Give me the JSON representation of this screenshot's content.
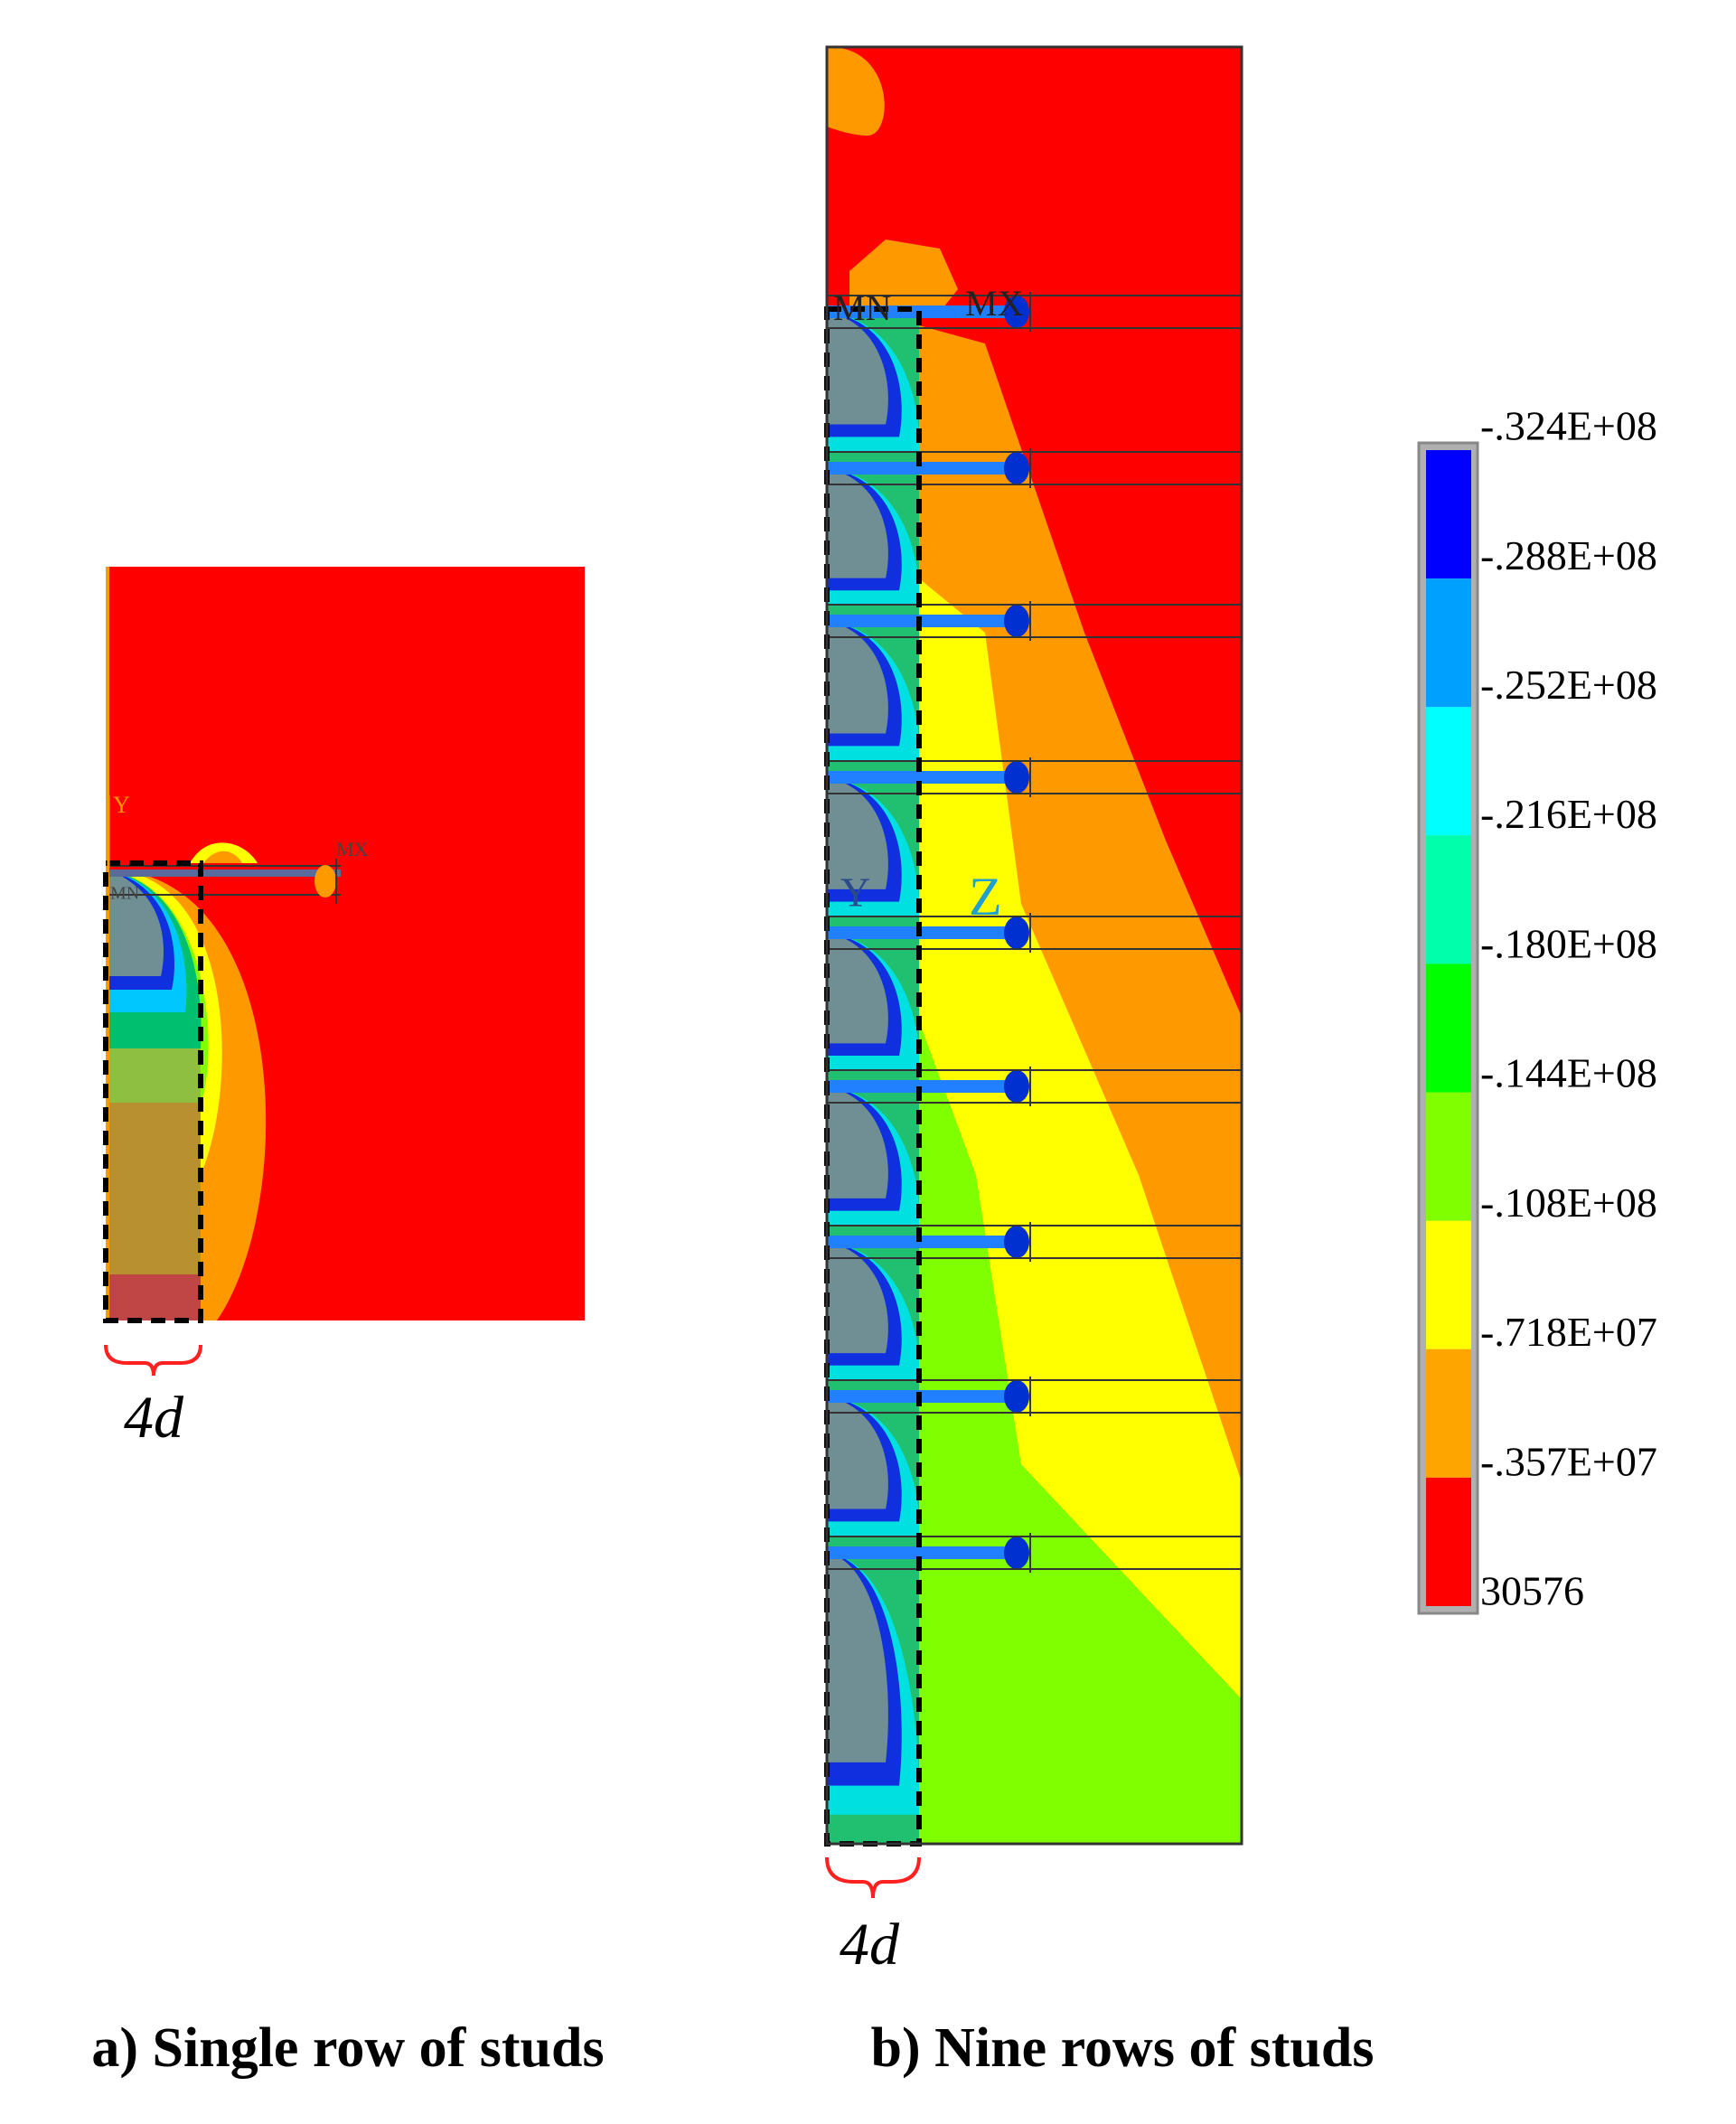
{
  "panels": [
    {
      "caption": "a) Single row of studs",
      "brace_label": "4d",
      "tags": [
        "Y",
        "MN",
        "MX"
      ]
    },
    {
      "caption": "b) Nine rows of studs",
      "brace_label": "4d",
      "tags": [
        "Y",
        "MN",
        "MX",
        "Z"
      ]
    }
  ],
  "legend": {
    "labels": [
      "-.324E+08",
      "-.288E+08",
      "-.252E+08",
      "-.216E+08",
      "-.180E+08",
      "-.144E+08",
      "-.108E+08",
      "-.718E+07",
      "-.357E+07",
      "30576"
    ],
    "colors": [
      "#0000ff",
      "#00a0ff",
      "#00ffff",
      "#00ffaa",
      "#00ff00",
      "#80ff00",
      "#ffff00",
      "#ffa500",
      "#ff0000"
    ]
  }
}
